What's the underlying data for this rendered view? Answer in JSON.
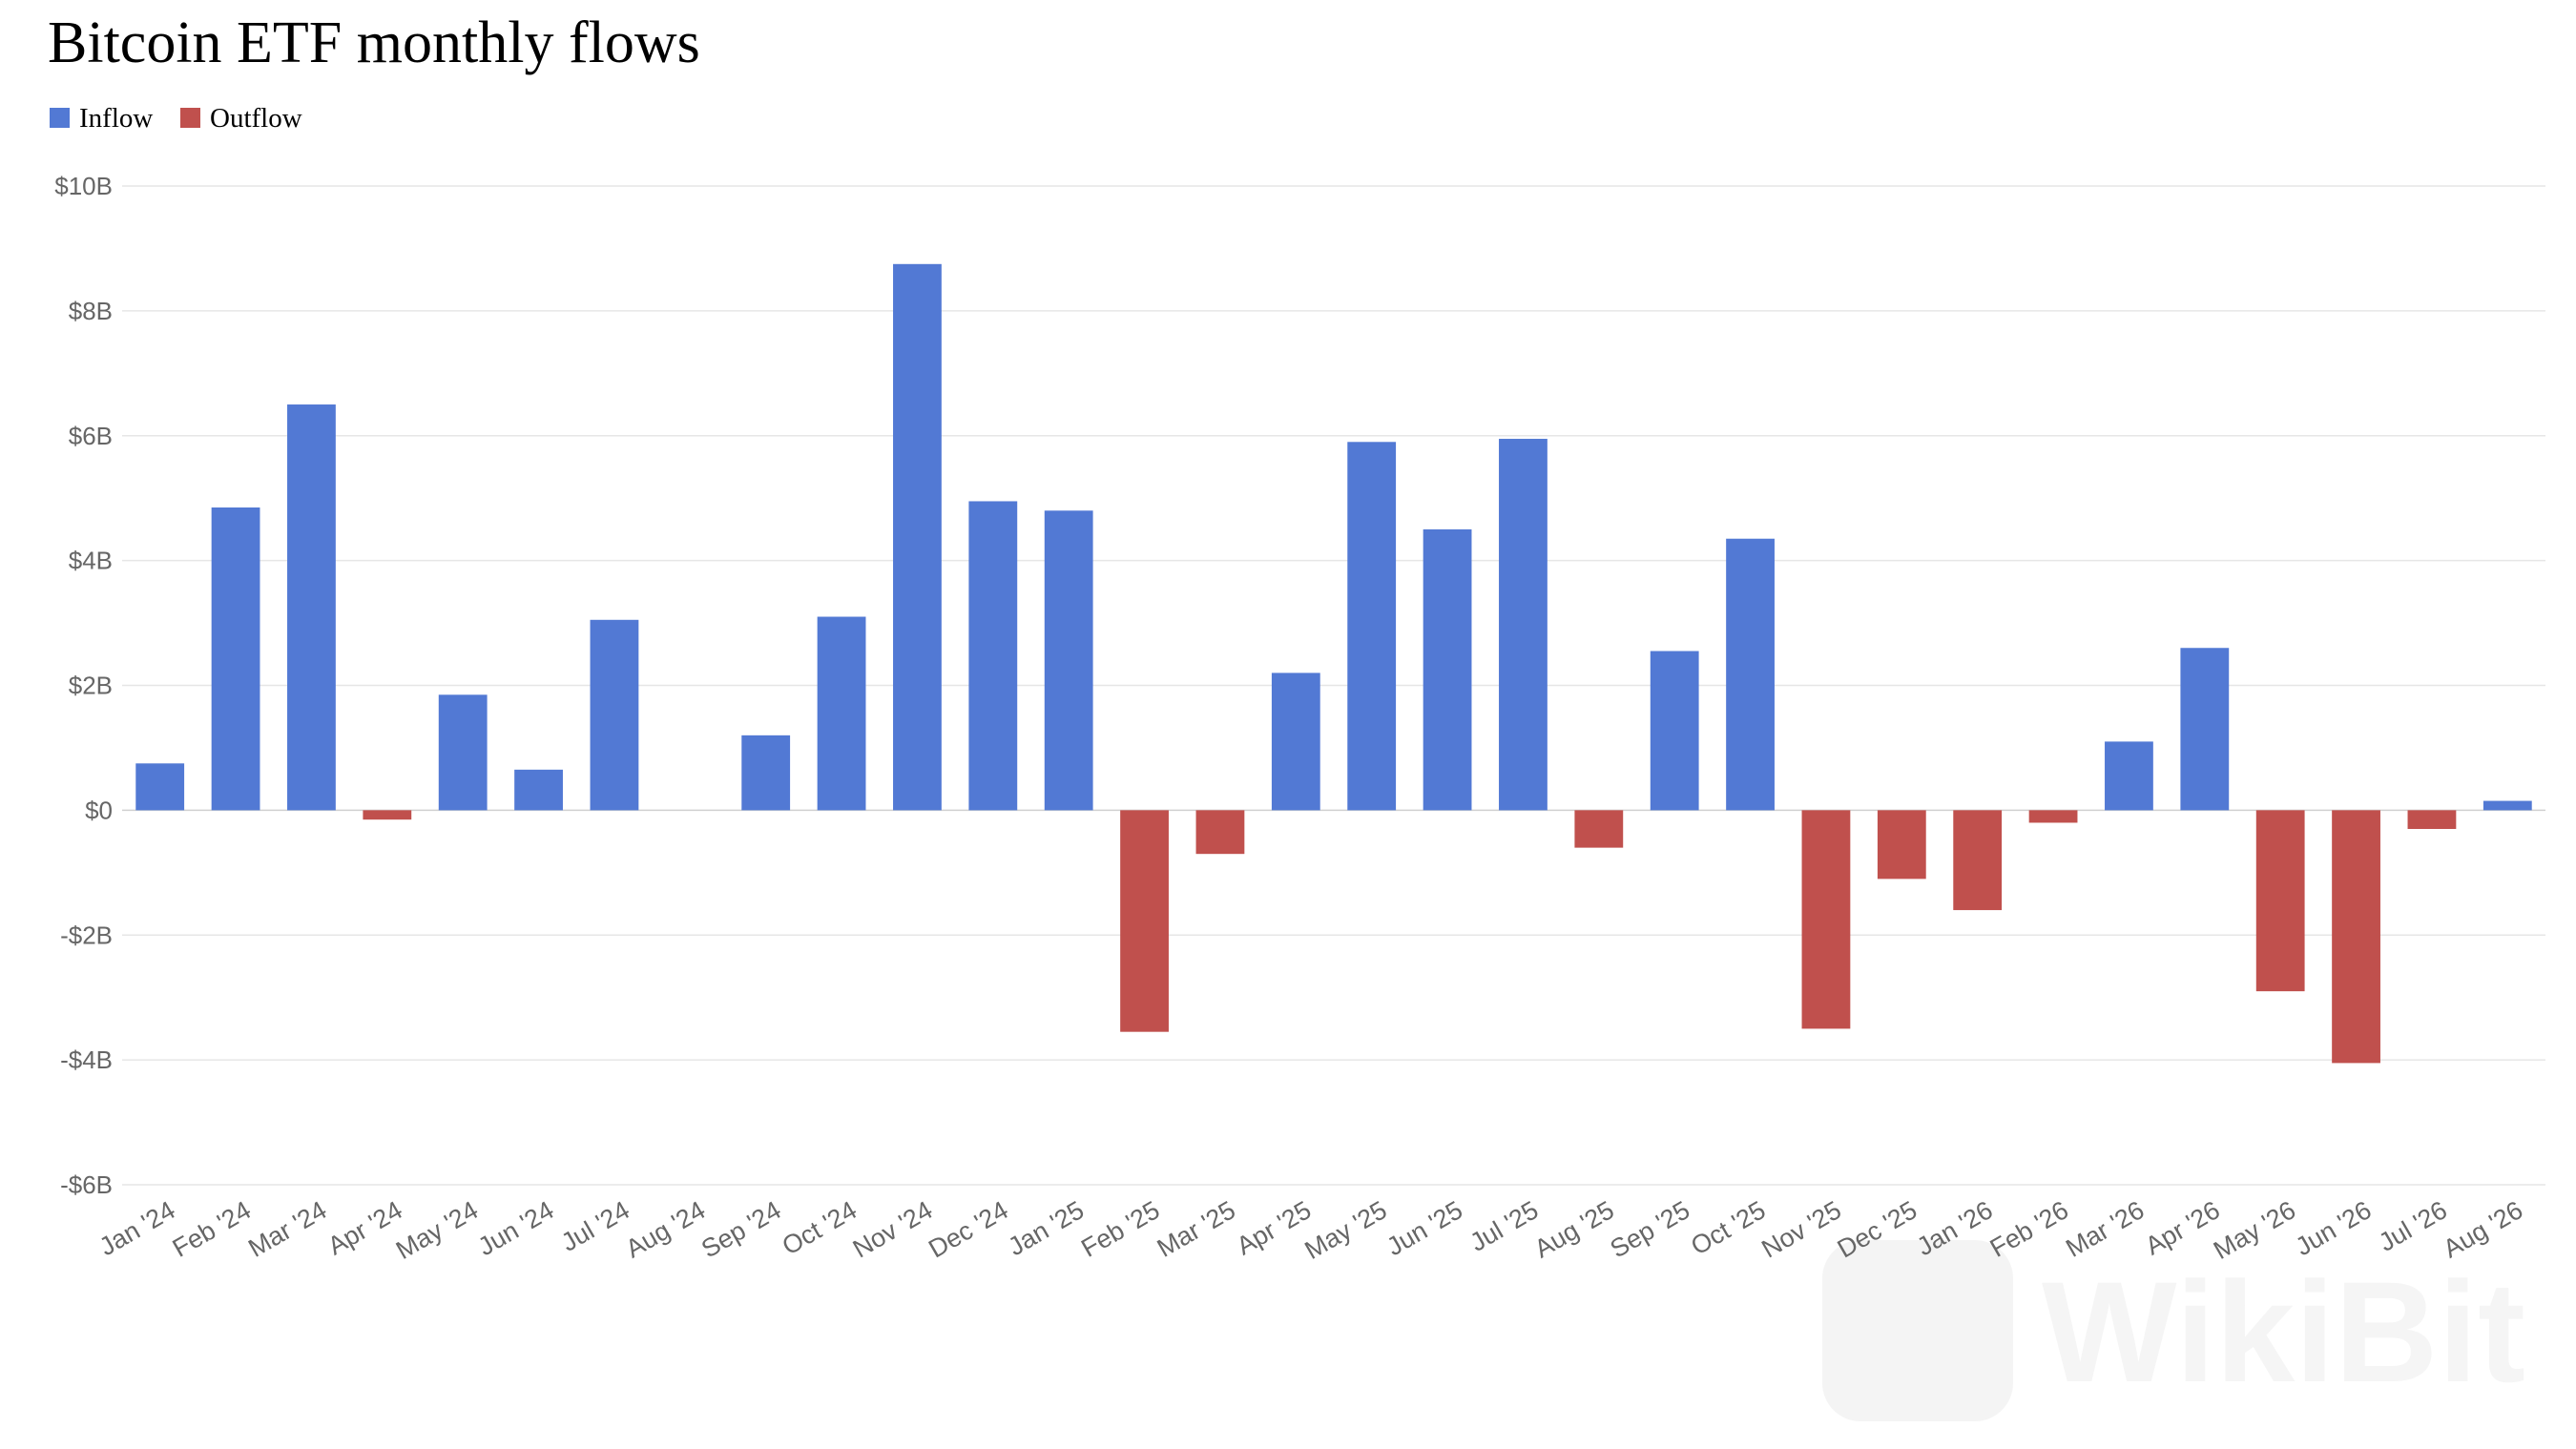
{
  "chart_data": {
    "type": "bar",
    "title": "Bitcoin ETF monthly flows",
    "legend": {
      "position": "top-left",
      "entries": [
        {
          "label": "Inflow",
          "color": "#5279d4"
        },
        {
          "label": "Outflow",
          "color": "#c0504d"
        }
      ]
    },
    "colors": {
      "inflow": "#5279d4",
      "outflow": "#c0504d"
    },
    "ylim": [
      -6,
      10
    ],
    "y_unit": "billion USD",
    "y_ticks": [
      10,
      8,
      6,
      4,
      2,
      0,
      -2,
      -4,
      -6
    ],
    "y_tick_labels": [
      "$10B",
      "$8B",
      "$6B",
      "$4B",
      "$2B",
      "$0",
      "-$2B",
      "-$4B",
      "-$6B"
    ],
    "grid": true,
    "categories": [
      "Jan '24",
      "Feb '24",
      "Mar '24",
      "Apr '24",
      "May '24",
      "Jun '24",
      "Jul '24",
      "Aug '24",
      "Sep '24",
      "Oct '24",
      "Nov '24",
      "Dec '24",
      "Jan '25",
      "Feb '25",
      "Mar '25",
      "Apr '25",
      "May '25",
      "Jun '25",
      "Jul '25",
      "Aug '25",
      "Sep '25",
      "Oct '25",
      "Nov '25",
      "Dec '25",
      "Jan '26",
      "Feb '26",
      "Mar '26",
      "Apr '26",
      "May '26",
      "Jun '26",
      "Jul '26",
      "Aug '26"
    ],
    "values": [
      0.75,
      4.85,
      6.5,
      -0.15,
      1.85,
      0.65,
      3.05,
      0,
      1.2,
      3.1,
      8.75,
      4.95,
      4.8,
      -3.55,
      -0.7,
      2.2,
      5.9,
      4.5,
      5.95,
      -0.6,
      2.55,
      4.35,
      -3.5,
      -1.1,
      -1.6,
      -0.2,
      1.1,
      2.6,
      -2.9,
      -4.05,
      -0.3,
      0.15
    ]
  },
  "watermark": {
    "text": "WikiBit",
    "icon": "wikibit-logo-icon"
  }
}
